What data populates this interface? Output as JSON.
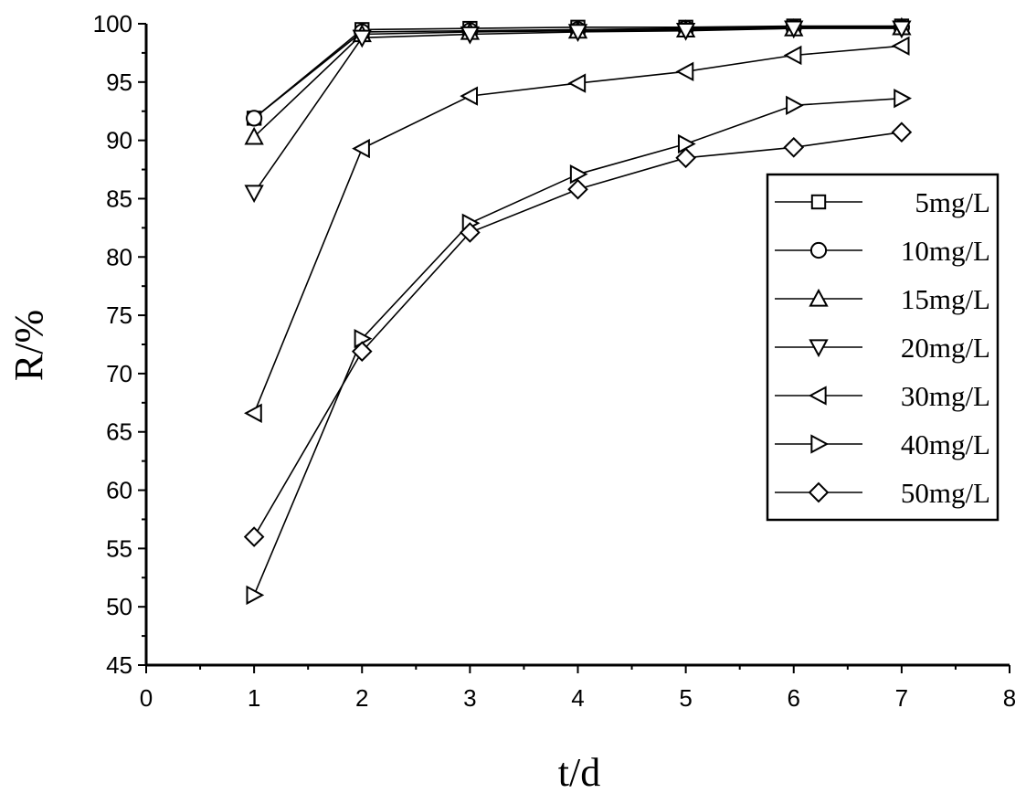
{
  "chart_data": {
    "type": "line",
    "xlabel": "t/d",
    "ylabel": "R/%",
    "xlim": [
      0,
      8
    ],
    "ylim": [
      45,
      100
    ],
    "xticks": [
      0,
      1,
      2,
      3,
      4,
      5,
      6,
      7,
      8
    ],
    "yticks": [
      45,
      50,
      55,
      60,
      65,
      70,
      75,
      80,
      85,
      90,
      95,
      100
    ],
    "grid": false,
    "legend_position": "right",
    "x": [
      1,
      2,
      3,
      4,
      5,
      6,
      7
    ],
    "series": [
      {
        "name": "5mg/L",
        "marker": "square",
        "values": [
          91.9,
          99.5,
          99.6,
          99.7,
          99.7,
          99.8,
          99.8
        ]
      },
      {
        "name": "10mg/L",
        "marker": "circle",
        "values": [
          91.9,
          99.3,
          99.4,
          99.5,
          99.6,
          99.7,
          99.7
        ]
      },
      {
        "name": "15mg/L",
        "marker": "triangle-up",
        "values": [
          90.3,
          99.1,
          99.3,
          99.4,
          99.5,
          99.6,
          99.7
        ]
      },
      {
        "name": "20mg/L",
        "marker": "triangle-down",
        "values": [
          85.5,
          98.8,
          99.1,
          99.3,
          99.4,
          99.6,
          99.6
        ]
      },
      {
        "name": "30mg/L",
        "marker": "triangle-left",
        "values": [
          66.6,
          89.3,
          93.8,
          94.9,
          95.9,
          97.3,
          98.1
        ]
      },
      {
        "name": "40mg/L",
        "marker": "triangle-right",
        "values": [
          51.0,
          73.0,
          82.9,
          87.1,
          89.7,
          93.0,
          93.6
        ]
      },
      {
        "name": "50mg/L",
        "marker": "diamond",
        "values": [
          56.0,
          71.9,
          82.1,
          85.8,
          88.5,
          89.4,
          90.7
        ]
      }
    ],
    "colors": {
      "line": "#000000",
      "marker_fill": "#ffffff",
      "background": "#ffffff"
    }
  }
}
